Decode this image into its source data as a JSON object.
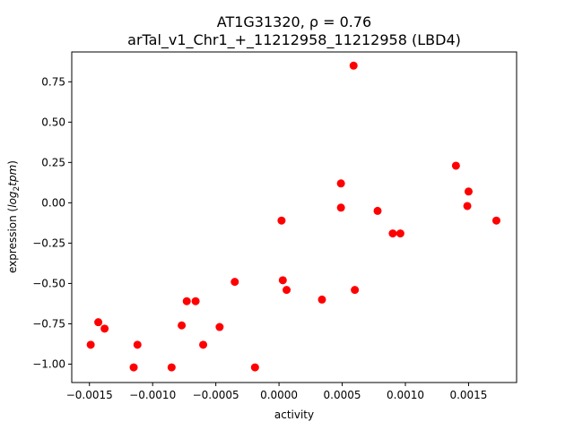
{
  "chart_data": {
    "type": "scatter",
    "title_line1": "AT1G31320, ρ = 0.76",
    "title_line2": "arTal_v1_Chr1_+_11212958_11212958 (LBD4)",
    "xlabel": "activity",
    "ylabel_prefix": "expression (",
    "ylabel_math": "log",
    "ylabel_sub": "2",
    "ylabel_math2": "tpm",
    "ylabel_suffix": ")",
    "xlim": [
      -0.00164,
      0.00188
    ],
    "ylim": [
      -1.114,
      0.935
    ],
    "x_ticks": [
      {
        "value": -0.0015,
        "label": "−0.0015"
      },
      {
        "value": -0.001,
        "label": "−0.0010"
      },
      {
        "value": -0.0005,
        "label": "−0.0005"
      },
      {
        "value": 0.0,
        "label": "0.0000"
      },
      {
        "value": 0.0005,
        "label": "0.0005"
      },
      {
        "value": 0.001,
        "label": "0.0010"
      },
      {
        "value": 0.0015,
        "label": "0.0015"
      }
    ],
    "y_ticks": [
      {
        "value": -1.0,
        "label": "−1.00"
      },
      {
        "value": -0.75,
        "label": "−0.75"
      },
      {
        "value": -0.5,
        "label": "−0.50"
      },
      {
        "value": -0.25,
        "label": "−0.25"
      },
      {
        "value": 0.0,
        "label": "0.00"
      },
      {
        "value": 0.25,
        "label": "0.25"
      },
      {
        "value": 0.5,
        "label": "0.50"
      },
      {
        "value": 0.75,
        "label": "0.75"
      }
    ],
    "point_color": "#ff0000",
    "points": [
      {
        "x": -0.00149,
        "y": -0.88
      },
      {
        "x": -0.00143,
        "y": -0.74
      },
      {
        "x": -0.00138,
        "y": -0.78
      },
      {
        "x": -0.00115,
        "y": -1.02
      },
      {
        "x": -0.00112,
        "y": -0.88
      },
      {
        "x": -0.00073,
        "y": -0.61
      },
      {
        "x": -0.00085,
        "y": -1.02
      },
      {
        "x": -0.00077,
        "y": -0.76
      },
      {
        "x": -0.00066,
        "y": -0.61
      },
      {
        "x": -0.0006,
        "y": -0.88
      },
      {
        "x": -0.00047,
        "y": -0.77
      },
      {
        "x": -0.00035,
        "y": -0.49
      },
      {
        "x": -0.00019,
        "y": -1.02
      },
      {
        "x": 2e-05,
        "y": -0.11
      },
      {
        "x": 3e-05,
        "y": -0.48
      },
      {
        "x": 6e-05,
        "y": -0.54
      },
      {
        "x": 0.00034,
        "y": -0.6
      },
      {
        "x": 0.00049,
        "y": 0.12
      },
      {
        "x": 0.00049,
        "y": -0.03
      },
      {
        "x": 0.00059,
        "y": 0.85
      },
      {
        "x": 0.0006,
        "y": -0.54
      },
      {
        "x": 0.00078,
        "y": -0.05
      },
      {
        "x": 0.0009,
        "y": -0.19
      },
      {
        "x": 0.00096,
        "y": -0.19
      },
      {
        "x": 0.0014,
        "y": 0.23
      },
      {
        "x": 0.00149,
        "y": -0.02
      },
      {
        "x": 0.0015,
        "y": 0.07
      },
      {
        "x": 0.00172,
        "y": -0.11
      }
    ]
  }
}
